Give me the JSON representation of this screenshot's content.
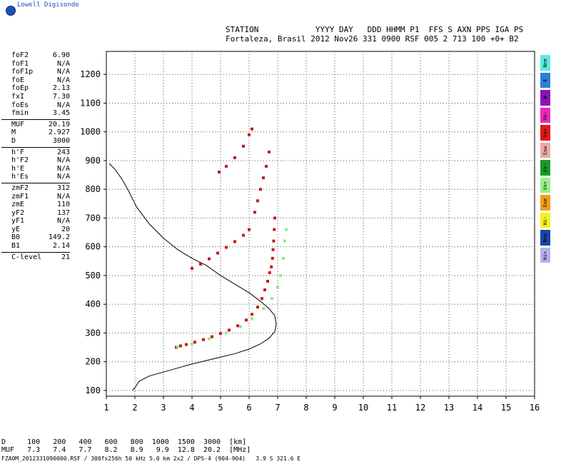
{
  "logo": {
    "text": "Lowell Digisonde",
    "icon": "globe-icon"
  },
  "header": {
    "line1": "STATION            YYYY DAY   DDD HHMM P1  FFS S AXN PPS IGA PS",
    "line2": "Fortaleza, Brasil 2012 Nov26 331 0900 RSF 005 2 713 100 +0+ B2"
  },
  "params": [
    {
      "k": "foF2",
      "v": "6.90"
    },
    {
      "k": "foF1",
      "v": "N/A"
    },
    {
      "k": "foF1p",
      "v": "N/A"
    },
    {
      "k": "foE",
      "v": "N/A"
    },
    {
      "k": "foEp",
      "v": "2.13"
    },
    {
      "k": "fxI",
      "v": "7.30"
    },
    {
      "k": "foEs",
      "v": "N/A"
    },
    {
      "k": "fmin",
      "v": "3.45"
    },
    {
      "sep": true
    },
    {
      "k": "MUF",
      "v": "20.19"
    },
    {
      "k": "M",
      "v": "2.927"
    },
    {
      "k": "D",
      "v": "3000"
    },
    {
      "sep": true
    },
    {
      "k": "h'F",
      "v": "243"
    },
    {
      "k": "h'F2",
      "v": "N/A"
    },
    {
      "k": "h'E",
      "v": "N/A"
    },
    {
      "k": "h'Es",
      "v": "N/A"
    },
    {
      "sep": true
    },
    {
      "k": "zmF2",
      "v": "312"
    },
    {
      "k": "zmF1",
      "v": "N/A"
    },
    {
      "k": "zmE",
      "v": "110"
    },
    {
      "k": "yF2",
      "v": "137"
    },
    {
      "k": "yF1",
      "v": "N/A"
    },
    {
      "k": "yE",
      "v": "20"
    },
    {
      "k": "B0",
      "v": "149.2"
    },
    {
      "k": "B1",
      "v": "2.14"
    },
    {
      "sep": true
    },
    {
      "k": "C-level",
      "v": "21"
    }
  ],
  "legend": [
    {
      "label": "Nne",
      "color": "#5fe8e0"
    },
    {
      "label": "E",
      "color": "#2f7fd8"
    },
    {
      "label": "W",
      "color": "#8a12b8"
    },
    {
      "label": "Vo-",
      "color": "#e828b8"
    },
    {
      "label": "Vo+",
      "color": "#e01818"
    },
    {
      "label": "Ssw",
      "color": "#f0a8a8"
    },
    {
      "label": "Vx-",
      "color": "#1a9a2a"
    },
    {
      "label": "Vx+",
      "color": "#9af08a"
    },
    {
      "label": "Sse",
      "color": "#f0a018"
    },
    {
      "label": "Hi-",
      "color": "#f5f020"
    },
    {
      "label": "Nnw",
      "color": "#1848a8"
    },
    {
      "label": "Hi+",
      "color": "#b8b0f0"
    }
  ],
  "chart_data": {
    "type": "scatter",
    "title": "",
    "xlabel": "",
    "ylabel": "",
    "xlim": [
      1,
      16
    ],
    "ylim": [
      80,
      1280
    ],
    "x_ticks": [
      1,
      2,
      3,
      4,
      5,
      6,
      7,
      8,
      9,
      10,
      11,
      12,
      13,
      14,
      15,
      16
    ],
    "y_ticks": [
      100,
      200,
      300,
      400,
      500,
      600,
      700,
      800,
      900,
      1000,
      1100,
      1200
    ],
    "grid": true,
    "series": [
      {
        "kind": "line",
        "color": "#000000",
        "x": [
          1.92,
          2.02,
          2.15,
          2.5,
          3.0,
          3.5,
          4.0,
          4.5,
          5.0,
          5.5,
          6.0,
          6.4,
          6.7,
          6.9,
          6.95,
          6.9,
          6.7,
          6.4,
          6.0,
          5.5,
          5.0,
          4.5,
          4.0,
          3.5,
          3.0,
          2.5,
          2.2,
          2.05,
          1.9,
          1.75,
          1.55,
          1.3,
          1.1
        ],
        "y": [
          100,
          112,
          132,
          150,
          164,
          178,
          192,
          204,
          216,
          228,
          244,
          262,
          282,
          305,
          330,
          360,
          385,
          410,
          440,
          470,
          500,
          535,
          560,
          590,
          630,
          680,
          720,
          740,
          770,
          800,
          835,
          870,
          890
        ]
      },
      {
        "kind": "trace",
        "color": "#c81818",
        "x": [
          3.45,
          3.6,
          3.8,
          4.1,
          4.4,
          4.7,
          5.0,
          5.3,
          5.6,
          5.9,
          6.1,
          6.3,
          6.45,
          6.55,
          6.65,
          6.72,
          6.78,
          6.82,
          6.84,
          6.86,
          6.88,
          6.9
        ],
        "y": [
          250,
          255,
          260,
          268,
          277,
          287,
          298,
          310,
          325,
          345,
          365,
          390,
          420,
          450,
          480,
          510,
          530,
          560,
          590,
          620,
          660,
          700
        ]
      },
      {
        "kind": "trace",
        "color": "#c81818",
        "x": [
          4.0,
          4.3,
          4.6,
          4.9,
          5.2,
          5.5,
          5.8,
          6.0
        ],
        "y": [
          525,
          540,
          558,
          578,
          598,
          618,
          640,
          660
        ]
      },
      {
        "kind": "trace",
        "color": "#c81818",
        "x": [
          4.95,
          5.2,
          5.5,
          5.8,
          6.0,
          6.1,
          6.2,
          6.3,
          6.4,
          6.5,
          6.6,
          6.7
        ],
        "y": [
          860,
          880,
          910,
          950,
          990,
          1010,
          720,
          760,
          800,
          840,
          880,
          930
        ]
      },
      {
        "kind": "trace",
        "color": "#8af08a",
        "x": [
          3.5,
          4.0,
          4.6,
          5.2,
          5.7,
          6.1,
          6.5,
          6.8,
          7.0,
          7.1,
          7.2,
          7.25,
          7.3
        ],
        "y": [
          252,
          262,
          280,
          300,
          322,
          350,
          385,
          420,
          460,
          500,
          560,
          620,
          660
        ]
      }
    ]
  },
  "dmuf": {
    "d_row": "D     100   200   400   600   800  1000  1500  3000  [km]",
    "muf_row": "MUF   7.3   7.4   7.7   8.2   8.9   9.9  12.8  20.2  [MHz]"
  },
  "footer": "FZA0M_2012331090000.RSF / 300fx256h 50 kHz 5.0 km 2x2 / DPS-4 (904-904)   3.9 S 321.6 E"
}
